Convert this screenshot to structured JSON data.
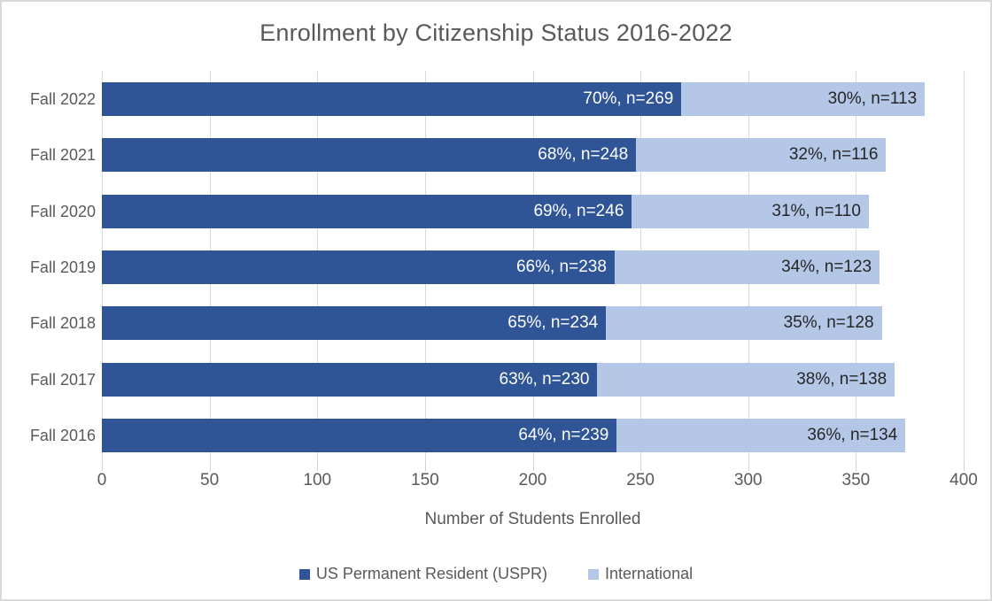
{
  "title": "Enrollment by Citizenship Status 2016-2022",
  "colors": {
    "uspr_bar": "#2F5597",
    "international_bar": "#B4C7E7",
    "gridline": "#D9D9D9",
    "axis_text": "#595959",
    "label_on_dark": "#FFFFFF",
    "label_on_light": "#262626"
  },
  "chart_data": {
    "type": "bar",
    "orientation": "horizontal",
    "stacked": true,
    "title": "Enrollment by Citizenship Status 2016-2022",
    "categories": [
      "Fall 2022",
      "Fall 2021",
      "Fall 2020",
      "Fall 2019",
      "Fall 2018",
      "Fall 2017",
      "Fall 2016"
    ],
    "series": [
      {
        "name": "US Permanent Resident (USPR)",
        "color": "#2F5597",
        "values": [
          269,
          248,
          246,
          238,
          234,
          230,
          239
        ],
        "labels": [
          "70%, n=269",
          "68%, n=248",
          "69%, n=246",
          "66%, n=238",
          "65%, n=234",
          "63%, n=230",
          "64%, n=239"
        ]
      },
      {
        "name": "International",
        "color": "#B4C7E7",
        "values": [
          113,
          116,
          110,
          123,
          128,
          138,
          134
        ],
        "labels": [
          "30%, n=113",
          "32%, n=116",
          "31%, n=110",
          "34%, n=123",
          "35%, n=128",
          "38%, n=138",
          "36%, n=134"
        ]
      }
    ],
    "totals": [
      382,
      364,
      356,
      361,
      362,
      368,
      373
    ],
    "xlabel": "Number of Students Enrolled",
    "xlim": [
      0,
      400
    ],
    "xticks": [
      0,
      50,
      100,
      150,
      200,
      250,
      300,
      350,
      400
    ],
    "grid": true,
    "legend_position": "bottom"
  },
  "legend": {
    "items": [
      {
        "label": "US Permanent Resident (USPR)",
        "color": "#2F5597"
      },
      {
        "label": "International",
        "color": "#B4C7E7"
      }
    ]
  }
}
